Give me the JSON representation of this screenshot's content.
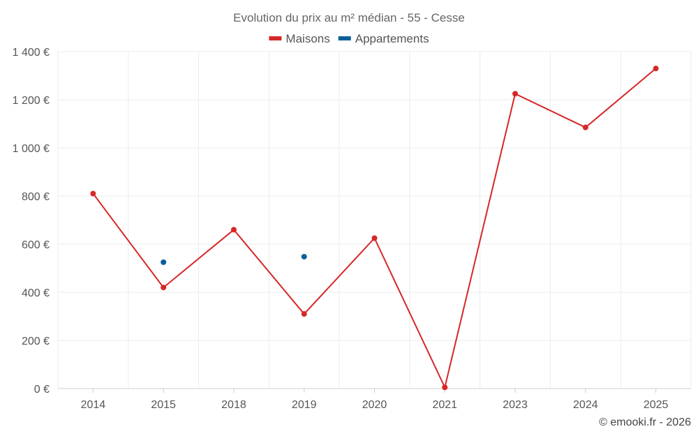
{
  "chart_data": {
    "type": "line",
    "title": "Evolution du prix au m² médian - 55 - Cesse",
    "categories": [
      "2014",
      "2015",
      "2018",
      "2019",
      "2020",
      "2021",
      "2023",
      "2024",
      "2025"
    ],
    "series": [
      {
        "name": "Maisons",
        "color": "#d62728",
        "values": [
          810,
          420,
          660,
          310,
          625,
          5,
          1225,
          1085,
          1330
        ]
      },
      {
        "name": "Appartements",
        "color": "#0b5f9a",
        "values": [
          null,
          525,
          null,
          null,
          null,
          null,
          null,
          null,
          null
        ]
      }
    ],
    "xlabel": "",
    "ylabel": "",
    "ylim": [
      0,
      1400
    ],
    "yticks": [
      0,
      200,
      400,
      600,
      800,
      1000,
      1200,
      1400
    ],
    "ytick_labels": [
      "0 €",
      "200 €",
      "400 €",
      "600 €",
      "800 €",
      "1 000 €",
      "1 200 €",
      "1 400 €"
    ],
    "extra_points": [
      {
        "series": "Appartements",
        "category": "2019",
        "value": 548
      }
    ],
    "grid": true,
    "legend": "top-center"
  },
  "credit": "© emooki.fr - 2026"
}
